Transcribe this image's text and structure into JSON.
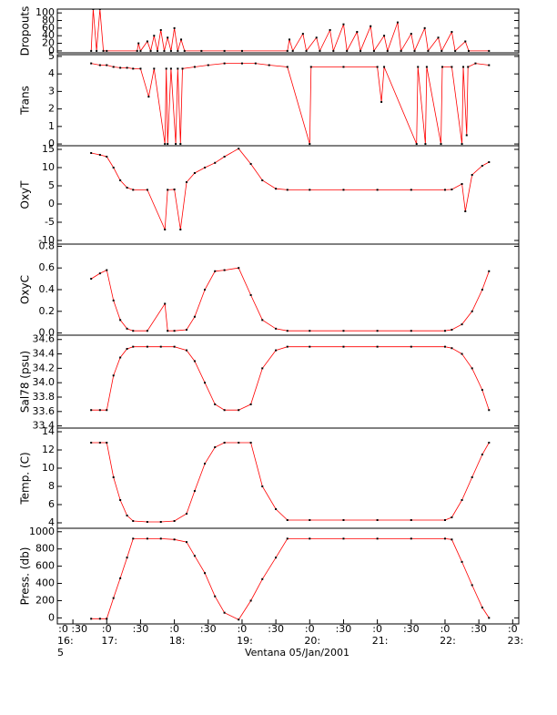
{
  "chart_data": [
    {
      "type": "line",
      "ylabel": "Dropouts",
      "color": "#ff0000",
      "marker_color": "#000000",
      "xlim": [
        16.27,
        23.09
      ],
      "ylim": [
        -5,
        110
      ],
      "yticks": [
        0,
        20,
        40,
        60,
        80,
        100
      ],
      "x": [
        16.77,
        16.8,
        16.85,
        16.9,
        16.95,
        17.0,
        17.45,
        17.47,
        17.5,
        17.6,
        17.65,
        17.7,
        17.75,
        17.8,
        17.85,
        17.9,
        17.95,
        18.0,
        18.05,
        18.1,
        18.15,
        18.4,
        18.74,
        19.0,
        19.67,
        19.7,
        19.75,
        19.9,
        19.95,
        20.1,
        20.15,
        20.3,
        20.35,
        20.5,
        20.55,
        20.7,
        20.75,
        20.9,
        20.95,
        21.1,
        21.15,
        21.3,
        21.35,
        21.5,
        21.55,
        21.7,
        21.75,
        21.9,
        21.95,
        22.1,
        22.15,
        22.3,
        22.35,
        22.65
      ],
      "values": [
        0,
        110,
        0,
        110,
        0,
        0,
        0,
        20,
        0,
        25,
        0,
        40,
        0,
        55,
        0,
        35,
        0,
        60,
        0,
        30,
        0,
        0,
        0,
        0,
        0,
        30,
        0,
        45,
        0,
        35,
        0,
        55,
        0,
        70,
        0,
        50,
        0,
        65,
        0,
        40,
        0,
        75,
        0,
        45,
        0,
        60,
        0,
        35,
        0,
        50,
        0,
        25,
        0,
        0
      ]
    },
    {
      "type": "line",
      "ylabel": "Trans",
      "color": "#ff0000",
      "marker_color": "#000000",
      "xlim": [
        16.27,
        23.09
      ],
      "ylim": [
        -0.1,
        5.1
      ],
      "yticks": [
        0,
        1,
        2,
        3,
        4,
        5
      ],
      "x": [
        16.77,
        16.9,
        17.0,
        17.1,
        17.2,
        17.3,
        17.39,
        17.5,
        17.62,
        17.7,
        17.86,
        17.88,
        17.9,
        17.95,
        18.02,
        18.05,
        18.09,
        18.12,
        18.3,
        18.5,
        18.74,
        19.0,
        19.2,
        19.4,
        19.67,
        20.0,
        20.02,
        20.5,
        21.0,
        21.06,
        21.1,
        21.58,
        21.6,
        21.71,
        21.73,
        21.94,
        21.96,
        22.1,
        22.25,
        22.27,
        22.32,
        22.34,
        22.45,
        22.65
      ],
      "values": [
        4.6,
        4.5,
        4.5,
        4.4,
        4.35,
        4.35,
        4.3,
        4.3,
        2.7,
        4.3,
        0,
        4.3,
        0,
        4.3,
        0,
        4.3,
        0,
        4.3,
        4.4,
        4.5,
        4.6,
        4.6,
        4.6,
        4.5,
        4.4,
        0,
        4.4,
        4.4,
        4.4,
        2.4,
        4.4,
        0,
        4.4,
        0,
        4.4,
        0,
        4.4,
        4.4,
        0,
        4.4,
        0.5,
        4.4,
        4.6,
        4.5
      ]
    },
    {
      "type": "line",
      "ylabel": "OxyT",
      "color": "#ff0000",
      "marker_color": "#000000",
      "xlim": [
        16.27,
        23.09
      ],
      "ylim": [
        -11,
        16
      ],
      "yticks": [
        -10,
        -5,
        0,
        5,
        10,
        15
      ],
      "x": [
        16.77,
        16.9,
        17.0,
        17.1,
        17.2,
        17.3,
        17.39,
        17.6,
        17.86,
        17.9,
        18.0,
        18.09,
        18.18,
        18.3,
        18.45,
        18.6,
        18.74,
        18.95,
        19.13,
        19.3,
        19.5,
        19.67,
        20.0,
        20.5,
        21.0,
        21.5,
        22.0,
        22.1,
        22.25,
        22.3,
        22.4,
        22.55,
        22.65
      ],
      "values": [
        14,
        13.5,
        13,
        10,
        6.5,
        4.5,
        3.9,
        3.9,
        -7,
        3.9,
        4,
        -7,
        6,
        8.5,
        10,
        11.3,
        13,
        15.2,
        11,
        6.5,
        4.2,
        3.9,
        3.9,
        3.9,
        3.9,
        3.9,
        3.9,
        4,
        5.5,
        -2,
        8,
        10.5,
        11.5
      ]
    },
    {
      "type": "line",
      "ylabel": "OxyC",
      "color": "#ff0000",
      "marker_color": "#000000",
      "xlim": [
        16.27,
        23.09
      ],
      "ylim": [
        -0.02,
        0.82
      ],
      "yticks": [
        {
          "value": 0,
          "label": "0.0"
        },
        0.2,
        0.4,
        0.6,
        0.8
      ],
      "x": [
        16.77,
        16.9,
        17.0,
        17.1,
        17.2,
        17.3,
        17.39,
        17.6,
        17.86,
        17.9,
        18.0,
        18.18,
        18.3,
        18.45,
        18.6,
        18.74,
        18.95,
        19.13,
        19.3,
        19.5,
        19.67,
        20.0,
        20.5,
        21.0,
        21.5,
        22.0,
        22.1,
        22.25,
        22.4,
        22.55,
        22.65
      ],
      "values": [
        0.5,
        0.55,
        0.58,
        0.3,
        0.12,
        0.04,
        0.02,
        0.02,
        0.27,
        0.02,
        0.02,
        0.03,
        0.15,
        0.4,
        0.57,
        0.58,
        0.6,
        0.35,
        0.12,
        0.04,
        0.02,
        0.02,
        0.02,
        0.02,
        0.02,
        0.02,
        0.03,
        0.08,
        0.2,
        0.4,
        0.57
      ]
    },
    {
      "type": "line",
      "ylabel": "Sal78 (psu)",
      "color": "#ff0000",
      "marker_color": "#000000",
      "xlim": [
        16.27,
        23.09
      ],
      "ylim": [
        33.37,
        34.66
      ],
      "yticks": [
        33.4,
        33.6,
        33.8,
        {
          "value": 34,
          "label": "34.0"
        },
        34.2,
        34.4,
        34.6
      ],
      "x": [
        16.77,
        16.9,
        17.0,
        17.1,
        17.2,
        17.3,
        17.39,
        17.6,
        17.8,
        18.0,
        18.18,
        18.3,
        18.45,
        18.6,
        18.74,
        18.95,
        19.13,
        19.3,
        19.5,
        19.67,
        20.0,
        20.5,
        21.0,
        21.5,
        22.0,
        22.1,
        22.25,
        22.4,
        22.55,
        22.65
      ],
      "values": [
        33.62,
        33.62,
        33.62,
        34.1,
        34.35,
        34.47,
        34.5,
        34.5,
        34.5,
        34.5,
        34.45,
        34.3,
        34.0,
        33.7,
        33.62,
        33.62,
        33.7,
        34.2,
        34.45,
        34.5,
        34.5,
        34.5,
        34.5,
        34.5,
        34.5,
        34.48,
        34.4,
        34.2,
        33.9,
        33.62
      ]
    },
    {
      "type": "line",
      "ylabel": "Temp. (C)",
      "color": "#ff0000",
      "marker_color": "#000000",
      "xlim": [
        16.27,
        23.09
      ],
      "ylim": [
        3.4,
        14.4
      ],
      "yticks": [
        4,
        6,
        8,
        10,
        12,
        14
      ],
      "x": [
        16.77,
        16.9,
        17.0,
        17.1,
        17.2,
        17.3,
        17.39,
        17.6,
        17.8,
        18.0,
        18.18,
        18.3,
        18.45,
        18.6,
        18.74,
        18.95,
        19.13,
        19.3,
        19.5,
        19.67,
        20.0,
        20.5,
        21.0,
        21.5,
        22.0,
        22.1,
        22.25,
        22.4,
        22.55,
        22.65
      ],
      "values": [
        12.8,
        12.8,
        12.8,
        9,
        6.5,
        4.8,
        4.2,
        4.1,
        4.1,
        4.2,
        5,
        7.5,
        10.5,
        12.3,
        12.8,
        12.8,
        12.8,
        8,
        5.5,
        4.3,
        4.3,
        4.3,
        4.3,
        4.3,
        4.3,
        4.6,
        6.5,
        9,
        11.5,
        12.8
      ]
    },
    {
      "type": "line",
      "ylabel": "Press. (db)",
      "color": "#ff0000",
      "marker_color": "#000000",
      "xlim": [
        16.27,
        23.09
      ],
      "ylim": [
        -70,
        1040
      ],
      "yticks": [
        0,
        200,
        400,
        600,
        800,
        1000
      ],
      "x": [
        16.77,
        16.9,
        17.0,
        17.1,
        17.2,
        17.3,
        17.39,
        17.6,
        17.8,
        18.0,
        18.18,
        18.3,
        18.45,
        18.6,
        18.74,
        18.95,
        19.13,
        19.3,
        19.5,
        19.67,
        20.0,
        20.5,
        21.0,
        21.5,
        22.0,
        22.1,
        22.25,
        22.4,
        22.55,
        22.65
      ],
      "values": [
        -10,
        -10,
        -10,
        230,
        460,
        700,
        920,
        920,
        920,
        910,
        880,
        720,
        520,
        250,
        60,
        -20,
        200,
        450,
        700,
        920,
        920,
        920,
        920,
        920,
        920,
        910,
        650,
        380,
        120,
        0
      ],
      "xticks": [
        {
          "value": 16.5,
          "label": ":0 :30"
        },
        {
          "value": 17,
          "label": ":0"
        },
        {
          "value": 17.5,
          "label": ":30"
        },
        {
          "value": 18,
          "label": ":0"
        },
        {
          "value": 18.5,
          "label": ":30"
        },
        {
          "value": 19,
          "label": ":0"
        },
        {
          "value": 19.5,
          "label": ":30"
        },
        {
          "value": 20,
          "label": ":0"
        },
        {
          "value": 20.5,
          "label": ":30"
        },
        {
          "value": 21,
          "label": ":0"
        },
        {
          "value": 21.5,
          "label": ":30"
        },
        {
          "value": 22,
          "label": ":0"
        },
        {
          "value": 22.5,
          "label": ":30"
        },
        {
          "value": 23,
          "label": ":0"
        }
      ],
      "x_hour_labels": [
        {
          "value": 16.27,
          "label": "16:"
        },
        {
          "value": 17,
          "label": "17:"
        },
        {
          "value": 18,
          "label": "18:"
        },
        {
          "value": 19,
          "label": "19:"
        },
        {
          "value": 20,
          "label": "20:"
        },
        {
          "value": 21,
          "label": "21:"
        },
        {
          "value": 22,
          "label": "22:"
        },
        {
          "value": 23,
          "label": "23:"
        }
      ],
      "x_hour_sublabel": "5",
      "xlabel": "Ventana 05/Jan/2001"
    }
  ]
}
